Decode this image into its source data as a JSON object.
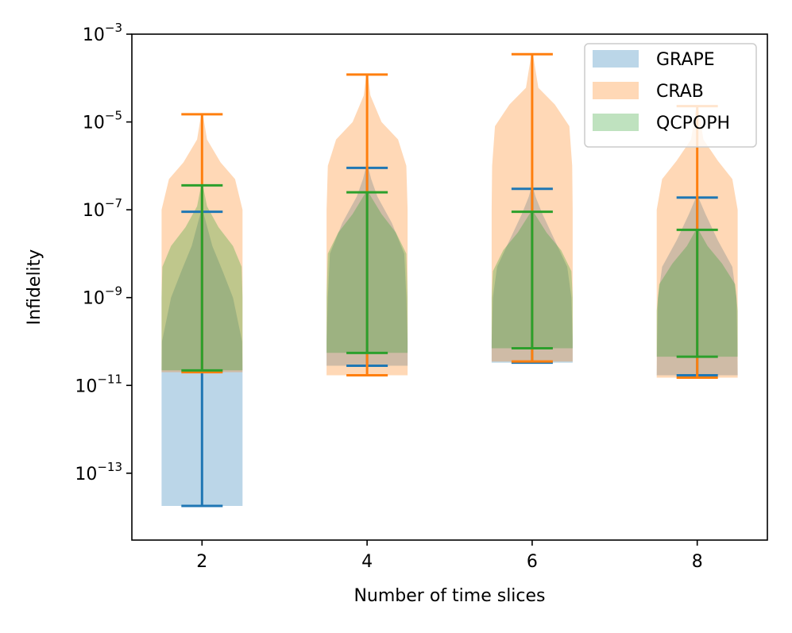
{
  "chart_data": {
    "type": "violin",
    "title": "",
    "xlabel": "Number of time slices",
    "ylabel": "Infidelity",
    "yscale": "log",
    "ylim": [
      3e-15,
      0.001
    ],
    "xlim": [
      1.15,
      8.85
    ],
    "x_ticks": [
      2,
      4,
      6,
      8
    ],
    "x_tick_labels": [
      "2",
      "4",
      "6",
      "8"
    ],
    "y_ticks": [
      {
        "value": 1e-13,
        "base": "10",
        "exp": "−13"
      },
      {
        "value": 1e-11,
        "base": "10",
        "exp": "−11"
      },
      {
        "value": 1e-09,
        "base": "10",
        "exp": "−9"
      },
      {
        "value": 1e-07,
        "base": "10",
        "exp": "−7"
      },
      {
        "value": 1e-05,
        "base": "10",
        "exp": "−5"
      },
      {
        "value": 0.001,
        "base": "10",
        "exp": "−3"
      }
    ],
    "legend_position": "top-right",
    "series": [
      {
        "name": "GRAPE",
        "color": "#1f77b4",
        "fill_opacity": 0.3,
        "violins": [
          {
            "x": 2,
            "min": 1.8e-14,
            "max": 9e-08,
            "profile": [
              [
                1.8e-14,
                0.98
              ],
              [
                1e-13,
                0.98
              ],
              [
                1e-12,
                0.98
              ],
              [
                2e-11,
                0.98
              ],
              [
                1e-10,
                0.97
              ],
              [
                1e-09,
                0.75
              ],
              [
                4e-09,
                0.5
              ],
              [
                1.5e-08,
                0.25
              ],
              [
                5e-08,
                0.1
              ],
              [
                9e-08,
                0.03
              ]
            ]
          },
          {
            "x": 4,
            "min": 2.8e-11,
            "max": 9e-07,
            "profile": [
              [
                2.8e-11,
                0.98
              ],
              [
                1e-10,
                0.98
              ],
              [
                1e-09,
                0.95
              ],
              [
                1e-08,
                0.9
              ],
              [
                5e-08,
                0.6
              ],
              [
                2e-07,
                0.25
              ],
              [
                5e-07,
                0.1
              ],
              [
                9e-07,
                0.03
              ]
            ]
          },
          {
            "x": 6,
            "min": 3.3e-11,
            "max": 3e-07,
            "profile": [
              [
                3.3e-11,
                0.98
              ],
              [
                1e-10,
                0.98
              ],
              [
                1e-09,
                0.95
              ],
              [
                5e-09,
                0.85
              ],
              [
                2e-08,
                0.55
              ],
              [
                8e-08,
                0.25
              ],
              [
                2e-07,
                0.08
              ],
              [
                3e-07,
                0.03
              ]
            ]
          },
          {
            "x": 8,
            "min": 1.7e-11,
            "max": 1.9e-07,
            "profile": [
              [
                1.7e-11,
                0.98
              ],
              [
                1e-10,
                0.97
              ],
              [
                1e-09,
                0.95
              ],
              [
                5e-09,
                0.85
              ],
              [
                2e-08,
                0.5
              ],
              [
                8e-08,
                0.2
              ],
              [
                1.9e-07,
                0.03
              ]
            ]
          }
        ]
      },
      {
        "name": "CRAB",
        "color": "#ff7f0e",
        "fill_opacity": 0.3,
        "violins": [
          {
            "x": 2,
            "min": 2e-11,
            "max": 1.5e-05,
            "profile": [
              [
                2e-11,
                0.98
              ],
              [
                1e-09,
                0.98
              ],
              [
                1e-07,
                0.98
              ],
              [
                5e-07,
                0.8
              ],
              [
                1.2e-06,
                0.45
              ],
              [
                4e-06,
                0.12
              ],
              [
                1.5e-05,
                0.02
              ]
            ]
          },
          {
            "x": 4,
            "min": 1.7e-11,
            "max": 0.00012,
            "profile": [
              [
                1.7e-11,
                0.98
              ],
              [
                1e-09,
                0.98
              ],
              [
                1e-07,
                0.98
              ],
              [
                1e-06,
                0.95
              ],
              [
                4e-06,
                0.75
              ],
              [
                1e-05,
                0.35
              ],
              [
                4e-05,
                0.08
              ],
              [
                0.00012,
                0.02
              ]
            ]
          },
          {
            "x": 6,
            "min": 3.5e-11,
            "max": 0.00035,
            "profile": [
              [
                3.5e-11,
                0.98
              ],
              [
                1e-09,
                0.98
              ],
              [
                1e-07,
                0.98
              ],
              [
                1e-06,
                0.97
              ],
              [
                8e-06,
                0.9
              ],
              [
                2.5e-05,
                0.55
              ],
              [
                6e-05,
                0.15
              ],
              [
                0.00035,
                0.02
              ]
            ]
          },
          {
            "x": 8,
            "min": 1.5e-11,
            "max": 2.3e-05,
            "profile": [
              [
                1.5e-11,
                0.98
              ],
              [
                1e-09,
                0.98
              ],
              [
                1e-07,
                0.98
              ],
              [
                5e-07,
                0.85
              ],
              [
                1.3e-06,
                0.5
              ],
              [
                4e-06,
                0.15
              ],
              [
                2.3e-05,
                0.02
              ]
            ]
          }
        ]
      },
      {
        "name": "QCPOPH",
        "color": "#2ca02c",
        "fill_opacity": 0.3,
        "violins": [
          {
            "x": 2,
            "min": 2.2e-11,
            "max": 3.6e-07,
            "profile": [
              [
                2.2e-11,
                0.98
              ],
              [
                1e-10,
                0.98
              ],
              [
                1e-09,
                0.98
              ],
              [
                5e-09,
                0.96
              ],
              [
                1.5e-08,
                0.75
              ],
              [
                4e-08,
                0.4
              ],
              [
                1.2e-07,
                0.12
              ],
              [
                3.6e-07,
                0.02
              ]
            ]
          },
          {
            "x": 4,
            "min": 5.5e-11,
            "max": 2.5e-07,
            "profile": [
              [
                5.5e-11,
                0.98
              ],
              [
                1e-09,
                0.98
              ],
              [
                1e-08,
                0.95
              ],
              [
                3e-08,
                0.7
              ],
              [
                8e-08,
                0.35
              ],
              [
                2.5e-07,
                0.03
              ]
            ]
          },
          {
            "x": 6,
            "min": 7e-11,
            "max": 9e-08,
            "profile": [
              [
                7e-11,
                0.98
              ],
              [
                1e-09,
                0.98
              ],
              [
                4e-09,
                0.95
              ],
              [
                1.2e-08,
                0.7
              ],
              [
                3e-08,
                0.35
              ],
              [
                9e-08,
                0.03
              ]
            ]
          },
          {
            "x": 8,
            "min": 4.5e-11,
            "max": 3.5e-08,
            "profile": [
              [
                4.5e-11,
                0.98
              ],
              [
                5e-10,
                0.98
              ],
              [
                2e-09,
                0.92
              ],
              [
                6e-09,
                0.6
              ],
              [
                1.5e-08,
                0.25
              ],
              [
                3.5e-08,
                0.03
              ]
            ]
          }
        ]
      }
    ]
  }
}
